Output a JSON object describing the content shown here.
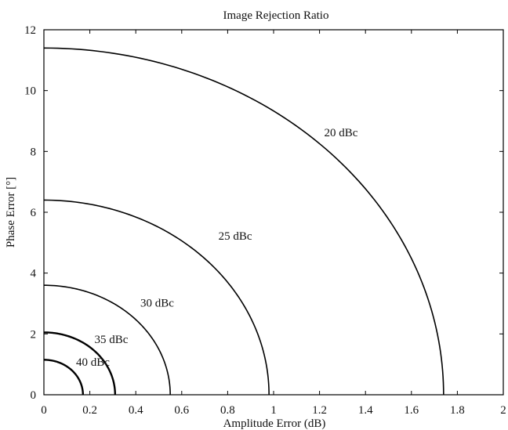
{
  "chart_data": {
    "type": "line",
    "title": "Image Rejection Ratio",
    "xlabel": "Amplitude Error (dB)",
    "ylabel": "Phase Error [°]",
    "xlim": [
      0,
      2
    ],
    "ylim": [
      0,
      12
    ],
    "x_ticks": [
      "0",
      "0.2",
      "0.4",
      "0.6",
      "0.8",
      "1",
      "1.2",
      "1.4",
      "1.6",
      "1.8",
      "2"
    ],
    "y_ticks": [
      "0",
      "2",
      "4",
      "6",
      "8",
      "10",
      "12"
    ],
    "grid": false,
    "series": [
      {
        "name": "20 dBc",
        "amplitude_intercept": 1.74,
        "phase_intercept": 11.4
      },
      {
        "name": "25 dBc",
        "amplitude_intercept": 0.98,
        "phase_intercept": 6.4
      },
      {
        "name": "30 dBc",
        "amplitude_intercept": 0.55,
        "phase_intercept": 3.6
      },
      {
        "name": "35 dBc",
        "amplitude_intercept": 0.31,
        "phase_intercept": 2.05
      },
      {
        "name": "40 dBc",
        "amplitude_intercept": 0.17,
        "phase_intercept": 1.15
      }
    ],
    "annotations": [
      {
        "text": "20 dBc",
        "x": 1.22,
        "y": 8.5
      },
      {
        "text": "25 dBc",
        "x": 0.76,
        "y": 5.1
      },
      {
        "text": "30 dBc",
        "x": 0.42,
        "y": 2.9
      },
      {
        "text": "35 dBc",
        "x": 0.22,
        "y": 1.7
      },
      {
        "text": "40 dBc",
        "x": 0.14,
        "y": 0.95
      }
    ]
  }
}
